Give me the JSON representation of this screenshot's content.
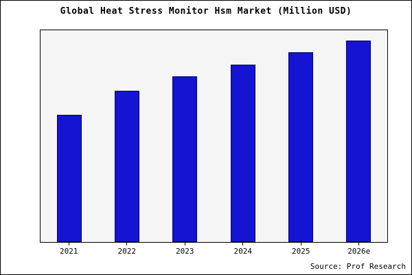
{
  "title": "Global Heat Stress Monitor Hsm Market (Million USD)",
  "source": "Source: Prof Research",
  "chart_data": {
    "type": "bar",
    "title": "Global Heat Stress Monitor Hsm Market (Million USD)",
    "categories": [
      "2021",
      "2022",
      "2023",
      "2024",
      "2025",
      "2026e"
    ],
    "values": [
      63,
      75,
      82,
      88,
      94,
      100
    ],
    "xlabel": "",
    "ylabel": "",
    "ylim": [
      0,
      105
    ],
    "grid": false,
    "legend": false,
    "bar_color": "#1414d2",
    "bar_edge_color": "#000066",
    "plot_bg": "#f5f5f5",
    "source_label": "Source: Prof Research"
  }
}
